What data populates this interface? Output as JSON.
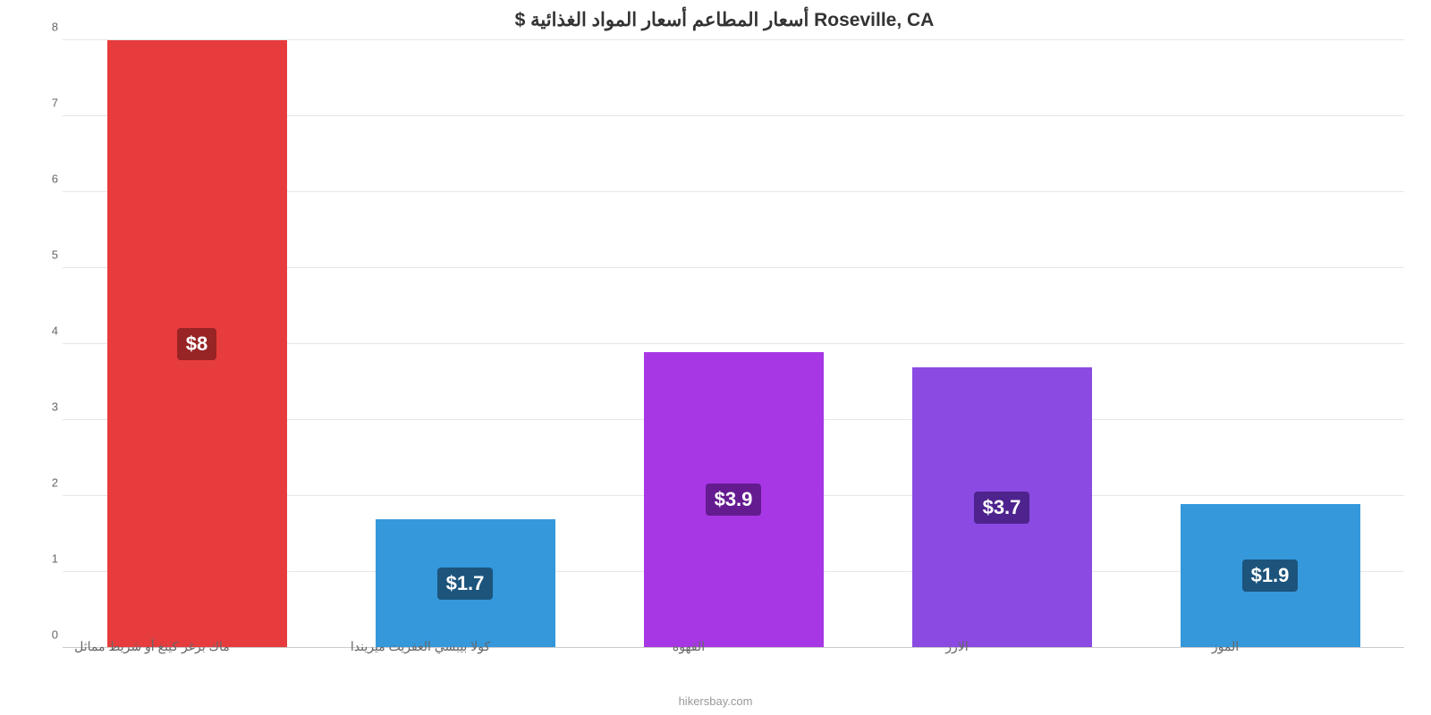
{
  "chart": {
    "type": "bar",
    "title": "Roseville, CA أسعار المطاعم أسعار المواد الغذائية $",
    "title_fontsize": 21,
    "title_color": "#333333",
    "background_color": "#ffffff",
    "grid_color": "#e6e6e6",
    "axis_color": "#cccccc",
    "tick_label_color": "#666666",
    "tick_label_fontsize": 13,
    "category_label_fontsize": 14,
    "bar_width_ratio": 0.67,
    "y_axis": {
      "min": 0,
      "max": 8,
      "ticks": [
        0,
        1,
        2,
        3,
        4,
        5,
        6,
        7,
        8
      ]
    },
    "categories": [
      "ماك برغر كينغ أو شريط مماثل",
      "كولا بيبسي العفريت ميريندا",
      "القهوه",
      "الارز",
      "الموز"
    ],
    "series": [
      {
        "value": 8.0,
        "display_label": "$8",
        "bar_color": "#e73c3d",
        "label_bg_color": "#982425",
        "label_text_color": "#ffffff",
        "label_fontsize": 22
      },
      {
        "value": 1.7,
        "display_label": "$1.7",
        "bar_color": "#3498db",
        "label_bg_color": "#1c547c",
        "label_text_color": "#ffffff",
        "label_fontsize": 22
      },
      {
        "value": 3.9,
        "display_label": "$3.9",
        "bar_color": "#a737e5",
        "label_bg_color": "#641b90",
        "label_text_color": "#ffffff",
        "label_fontsize": 22
      },
      {
        "value": 3.7,
        "display_label": "$3.7",
        "bar_color": "#8b4ae2",
        "label_bg_color": "#4e238e",
        "label_text_color": "#ffffff",
        "label_fontsize": 22
      },
      {
        "value": 1.9,
        "display_label": "$1.9",
        "bar_color": "#3498db",
        "label_bg_color": "#1c547c",
        "label_text_color": "#ffffff",
        "label_fontsize": 22
      }
    ],
    "watermark": "hikersbay.com",
    "watermark_color": "#999999",
    "watermark_fontsize": 13
  }
}
